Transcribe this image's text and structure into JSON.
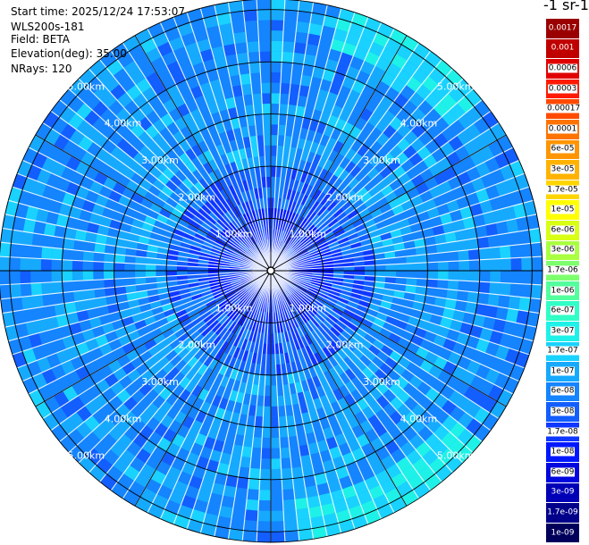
{
  "header": {
    "start_time": "Start time: 2025/12/24 17:53:07",
    "instrument": "WLS200s-181",
    "field": "Field: BETA",
    "elevation": "Elevation(deg): 35.00",
    "nrays": "NRays: 120"
  },
  "colorbar": {
    "title": "-1 sr-1",
    "ticks": [
      "0.0017",
      "0.001",
      "0.0006",
      "0.0003",
      "0.00017",
      "0.0001",
      "6e-05",
      "3e-05",
      "1.7e-05",
      "1e-05",
      "6e-06",
      "3e-06",
      "1.7e-06",
      "1e-06",
      "6e-07",
      "3e-07",
      "1.7e-07",
      "1e-07",
      "6e-08",
      "3e-08",
      "1.7e-08",
      "1e-08",
      "6e-09",
      "3e-09",
      "1.7e-09",
      "1e-09"
    ],
    "colors": [
      "#9a0000",
      "#c00000",
      "#e00000",
      "#ff1a00",
      "#ff4a00",
      "#ff7300",
      "#ff9500",
      "#ffb300",
      "#ffd500",
      "#ffff00",
      "#d8ff14",
      "#a9ff40",
      "#7dff6e",
      "#52ff9c",
      "#30ffc6",
      "#1ef2e8",
      "#19d2ff",
      "#16aaff",
      "#1484ff",
      "#125eff",
      "#0f37ff",
      "#0018ff",
      "#0007df",
      "#0000b7",
      "#00008b",
      "#00005c"
    ],
    "dark_label_colors": [
      "#9a0000",
      "#c00000",
      "#00008b",
      "#00005c",
      "#0000b7"
    ]
  },
  "chart_data": {
    "type": "heatmap",
    "projection": "polar (PPI scan)",
    "field": "BETA",
    "elevation_deg": 35.0,
    "n_rays": 120,
    "range_rings_km": [
      1.0,
      2.0,
      3.0,
      4.0,
      5.0
    ],
    "ring_labels": [
      "1.00km",
      "2.00km",
      "3.00km",
      "4.00km",
      "5.00km"
    ],
    "max_range_km": 5.2,
    "color_scale": "logarithmic",
    "value_range": [
      1e-09,
      0.0017
    ],
    "description_level": "background mostly ~1e-08 to 1e-07; central region within ~2 km lower (~1e-08 and below); higher ~1.7e-07 band near 5 km toward north-east and south-east"
  }
}
